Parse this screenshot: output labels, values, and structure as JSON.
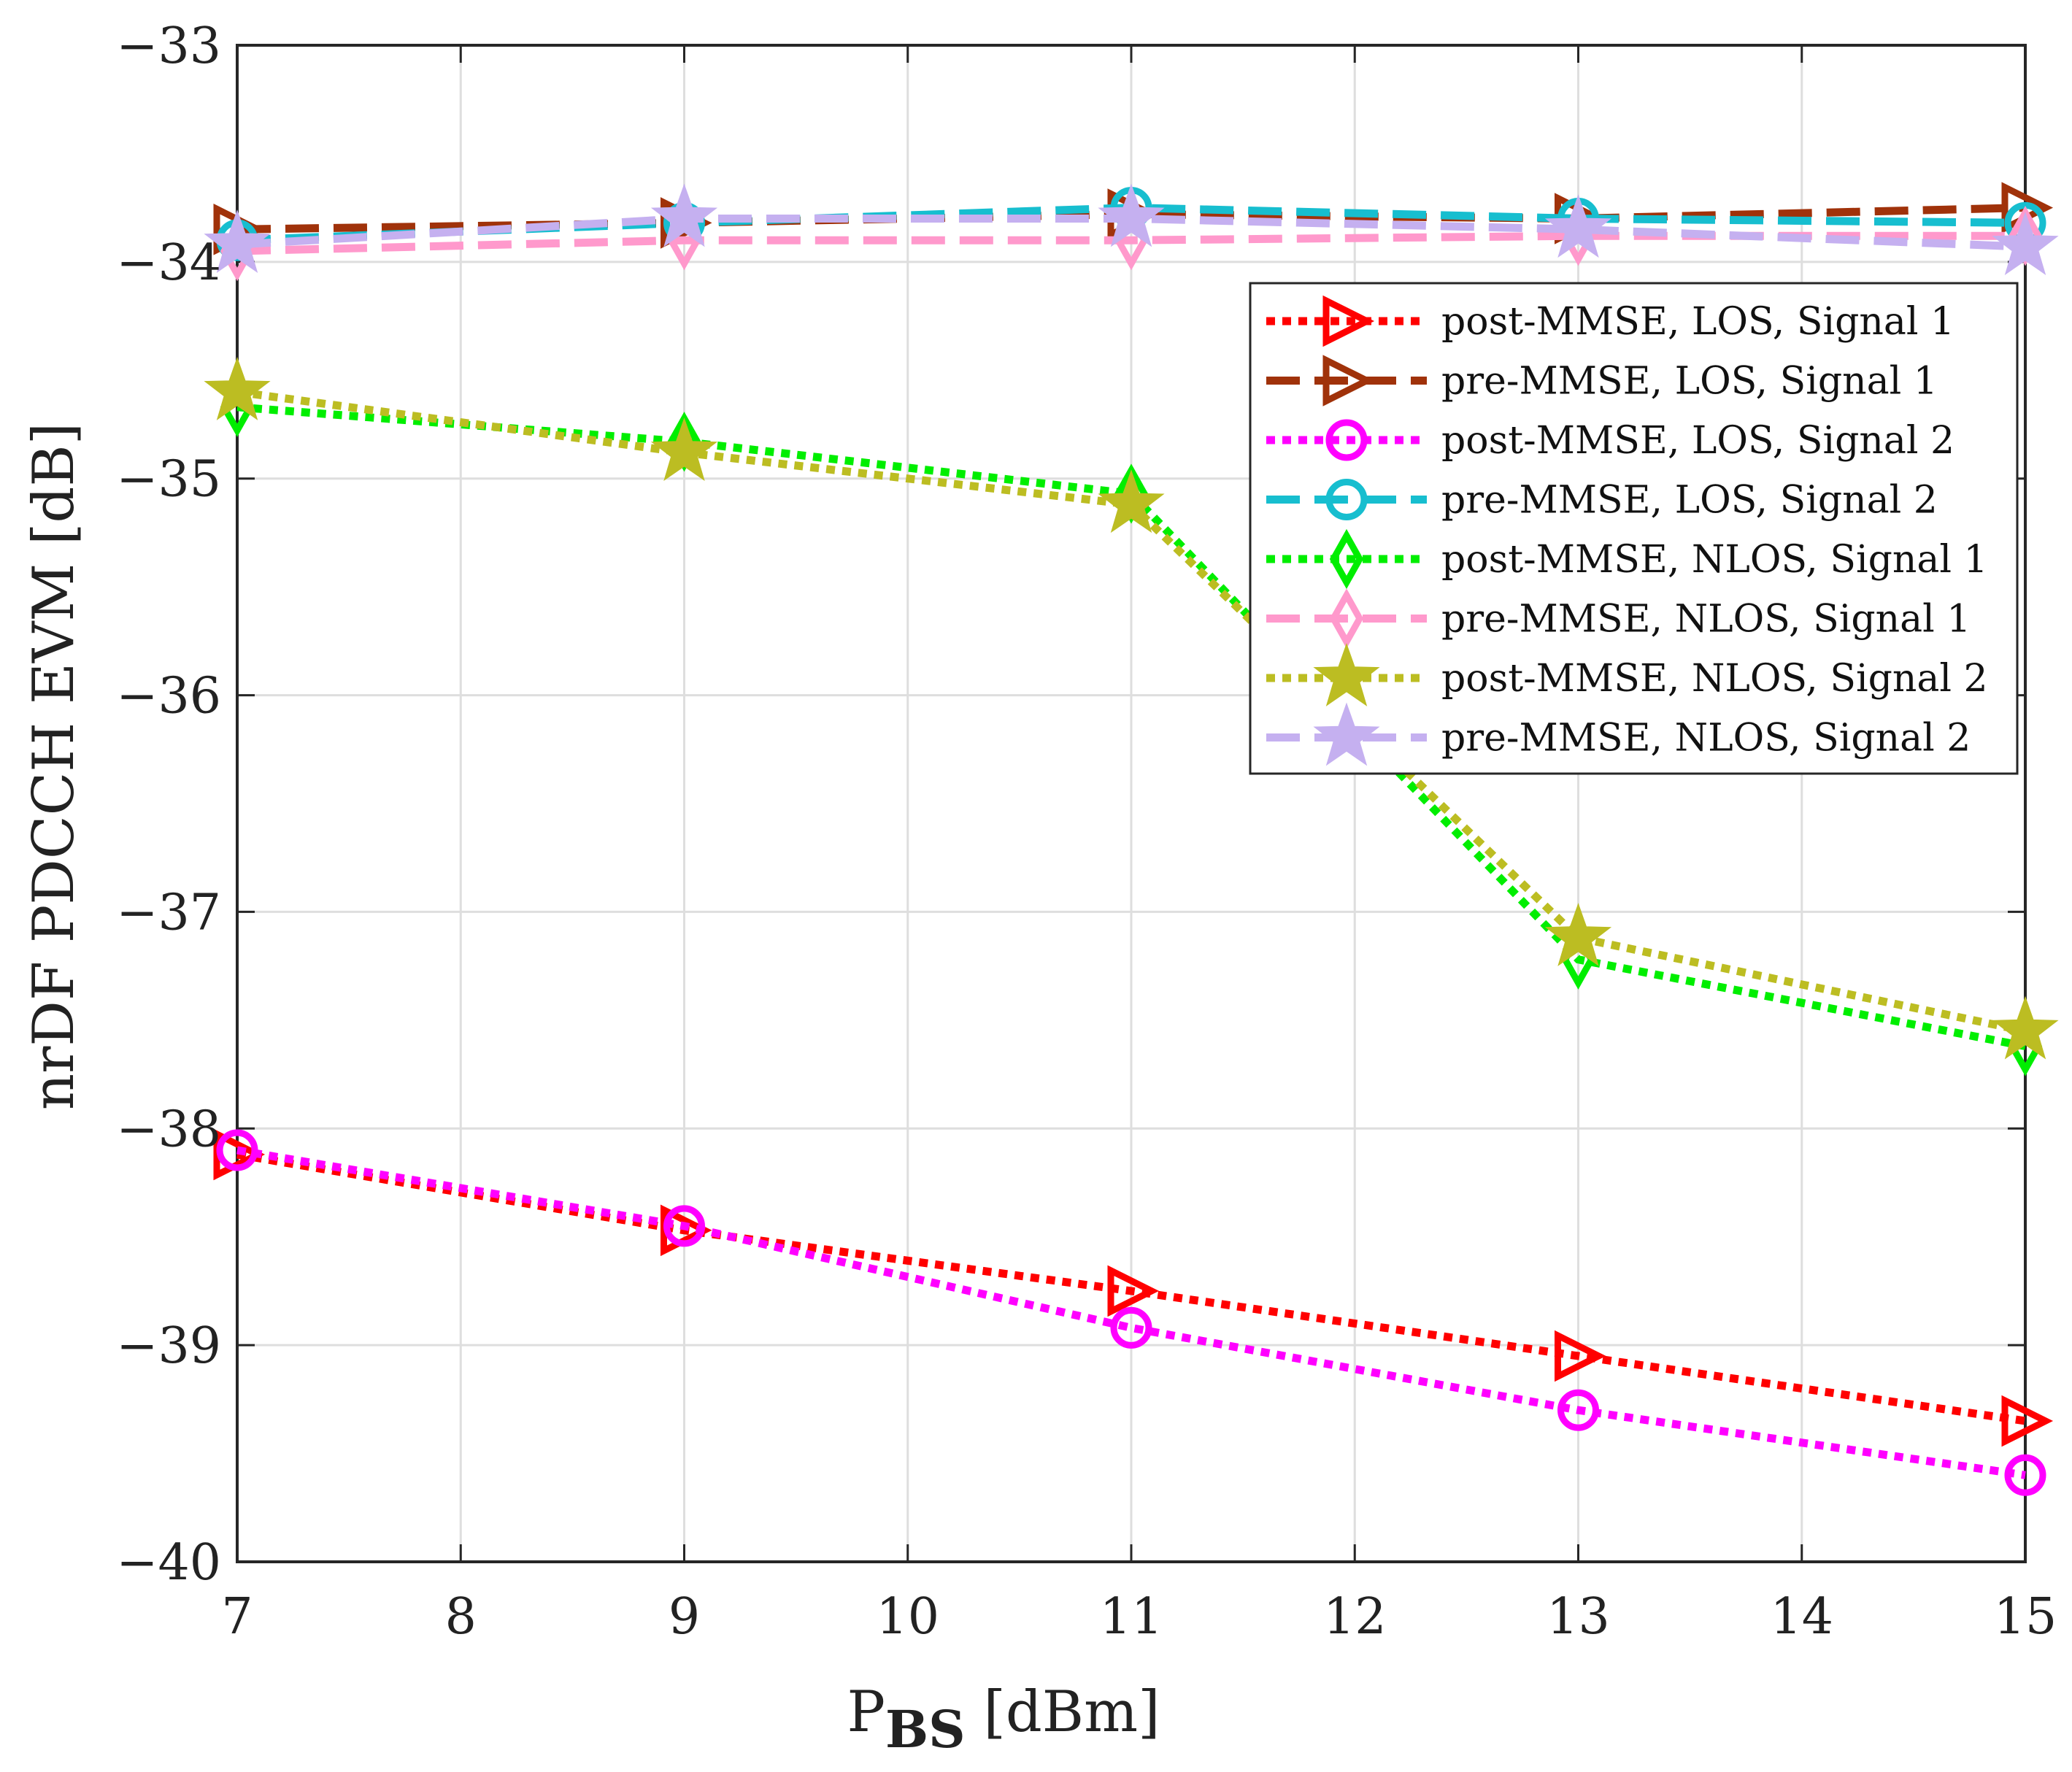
{
  "chart_data": {
    "type": "line",
    "title": "",
    "xlabel_main": "P",
    "xlabel_sub": "BS",
    "xlabel_unit": " [dBm]",
    "ylabel": "nrDF PDCCH EVM [dB]",
    "xlim": [
      7,
      15
    ],
    "ylim": [
      -40,
      -33
    ],
    "xticks": [
      "7",
      "8",
      "9",
      "10",
      "11",
      "12",
      "13",
      "14",
      "15"
    ],
    "yticks": [
      "−33",
      "−34",
      "−35",
      "−36",
      "−37",
      "−38",
      "−39",
      "−40"
    ],
    "ytick_values": [
      -33,
      -34,
      -35,
      -36,
      -37,
      -38,
      -39,
      -40
    ],
    "grid": true,
    "legend_position": "upper-right",
    "x": [
      7,
      9,
      11,
      13,
      15
    ],
    "series": [
      {
        "name": "post-MMSE, LOS, Signal 1",
        "values": [
          -38.12,
          -38.47,
          -38.75,
          -39.05,
          -39.35
        ],
        "color": "#ff0000",
        "dash": "dotted",
        "marker": "triangle-right"
      },
      {
        "name": "pre-MMSE, LOS, Signal 1",
        "values": [
          -33.85,
          -33.82,
          -33.78,
          -33.8,
          -33.75
        ],
        "color": "#a0320a",
        "dash": "dashed",
        "marker": "triangle-right"
      },
      {
        "name": "post-MMSE, LOS, Signal 2",
        "values": [
          -38.1,
          -38.45,
          -38.92,
          -39.3,
          -39.6
        ],
        "color": "#ff00ff",
        "dash": "dotted",
        "marker": "circle"
      },
      {
        "name": "pre-MMSE, LOS, Signal 2",
        "values": [
          -33.9,
          -33.82,
          -33.75,
          -33.8,
          -33.82
        ],
        "color": "#17becf",
        "dash": "dashed",
        "marker": "circle"
      },
      {
        "name": "post-MMSE, NLOS, Signal 1",
        "values": [
          -34.67,
          -34.83,
          -35.07,
          -37.22,
          -37.62
        ],
        "color": "#00ee00",
        "dash": "dotted",
        "marker": "diamond"
      },
      {
        "name": "pre-MMSE, NLOS, Signal 1",
        "values": [
          -33.95,
          -33.9,
          -33.9,
          -33.88,
          -33.88
        ],
        "color": "#ff99cc",
        "dash": "dashed",
        "marker": "diamond"
      },
      {
        "name": "post-MMSE, NLOS, Signal 2",
        "values": [
          -34.6,
          -34.88,
          -35.12,
          -37.12,
          -37.55
        ],
        "color": "#bcbd22",
        "dash": "dotted",
        "marker": "star"
      },
      {
        "name": "pre-MMSE, NLOS, Signal 2",
        "values": [
          -33.92,
          -33.8,
          -33.8,
          -33.85,
          -33.93
        ],
        "color": "#c5b0f0",
        "dash": "dashed",
        "marker": "star"
      }
    ]
  }
}
